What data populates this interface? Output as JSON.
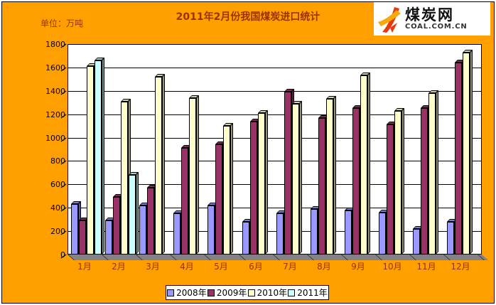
{
  "header": {
    "unit_label": "单位：万吨",
    "logo": {
      "name": "煤炭网",
      "domain": "COAL.COM.CN"
    }
  },
  "chart_data": {
    "type": "bar",
    "title": "2011年2月份我国煤炭进口统计",
    "unit": "万吨",
    "categories": [
      "1月",
      "2月",
      "3月",
      "4月",
      "5月",
      "6月",
      "7月",
      "8月",
      "9月",
      "10月",
      "11月",
      "12月"
    ],
    "series": [
      {
        "name": "2008年",
        "color": "#9999FF",
        "values": [
          430,
          290,
          420,
          350,
          420,
          280,
          350,
          390,
          380,
          360,
          220,
          280
        ]
      },
      {
        "name": "2009年",
        "color": "#993366",
        "values": [
          290,
          490,
          570,
          910,
          940,
          1140,
          1390,
          1170,
          1250,
          1110,
          1250,
          1640
        ]
      },
      {
        "name": "2010年",
        "color": "#FFFFCC",
        "values": [
          1610,
          1310,
          1520,
          1340,
          1100,
          1210,
          1290,
          1330,
          1530,
          1230,
          1380,
          1730
        ]
      },
      {
        "name": "2011年",
        "color": "#CCFFFF",
        "values": [
          1660,
          680,
          null,
          null,
          null,
          null,
          null,
          null,
          null,
          null,
          null,
          null
        ]
      }
    ],
    "xlabel": "",
    "ylabel": "万吨",
    "ylim": [
      0,
      1800
    ],
    "ytick_step": 200,
    "yticks": [
      0,
      200,
      400,
      600,
      800,
      1000,
      1200,
      1400,
      1600,
      1800
    ],
    "grid": true,
    "legend_position": "bottom",
    "style": "3d-clustered-column",
    "colors": {
      "background": "#FFA000",
      "title_text": "#993300",
      "plot_background": "#FFFFFF",
      "floor": "#848284",
      "gridline": "#000000"
    }
  }
}
